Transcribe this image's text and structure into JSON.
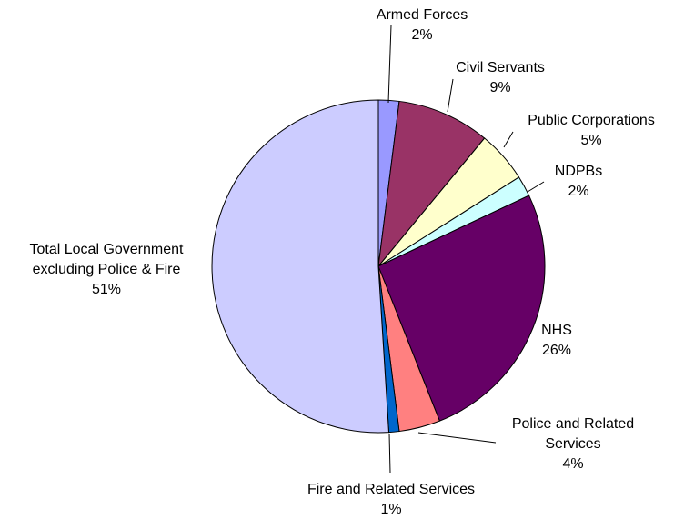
{
  "chart_data": {
    "type": "pie",
    "title": "",
    "legend": "none",
    "start": "12 o'clock",
    "direction": "clockwise",
    "slices": [
      {
        "label": "Armed Forces",
        "value": 2,
        "display": "2%",
        "color": "#9999ff"
      },
      {
        "label": "Civil Servants",
        "value": 9,
        "display": "9%",
        "color": "#993366"
      },
      {
        "label": "Public Corporations",
        "value": 5,
        "display": "5%",
        "color": "#ffffcc"
      },
      {
        "label": "NDPBs",
        "value": 2,
        "display": "2%",
        "color": "#ccffff"
      },
      {
        "label": "NHS",
        "value": 26,
        "display": "26%",
        "color": "#660066"
      },
      {
        "label": "Police and Related Services",
        "value": 4,
        "display": "4%",
        "color": "#ff8080"
      },
      {
        "label": "Fire and Related Services",
        "value": 1,
        "display": "1%",
        "color": "#0066cc"
      },
      {
        "label": "Total Local Government excluding Police & Fire",
        "value": 51,
        "display": "51%",
        "color": "#ccccff"
      }
    ]
  }
}
